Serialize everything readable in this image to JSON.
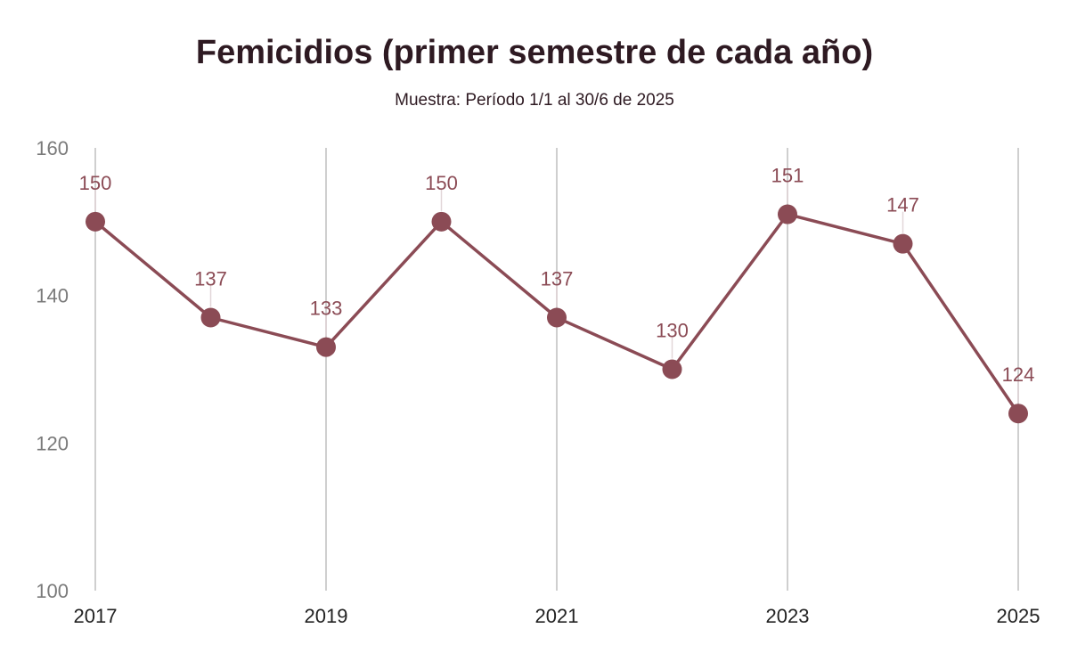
{
  "chart_data": {
    "type": "line",
    "title": "Femicidios (primer semestre de cada año)",
    "subtitle": "Muestra: Período 1/1 al 30/6 de 2025",
    "xlabel": "",
    "ylabel": "",
    "x": [
      2017,
      2018,
      2019,
      2020,
      2021,
      2022,
      2023,
      2024,
      2025
    ],
    "series": [
      {
        "values": [
          150,
          137,
          133,
          150,
          137,
          130,
          151,
          147,
          124
        ]
      }
    ],
    "data_labels": [
      "150",
      "137",
      "133",
      "150",
      "137",
      "130",
      "151",
      "147",
      "124"
    ],
    "xticks": [
      "2017",
      "2019",
      "2021",
      "2023",
      "2025"
    ],
    "yticks": [
      "100",
      "120",
      "140",
      "160"
    ],
    "ylim": [
      100,
      160
    ],
    "grid": "vertical",
    "legend": "none",
    "colors": {
      "line": "#8b4b55",
      "label": "#8b4b55",
      "grid": "#cfcfcf",
      "title": "#2e1a22"
    }
  }
}
